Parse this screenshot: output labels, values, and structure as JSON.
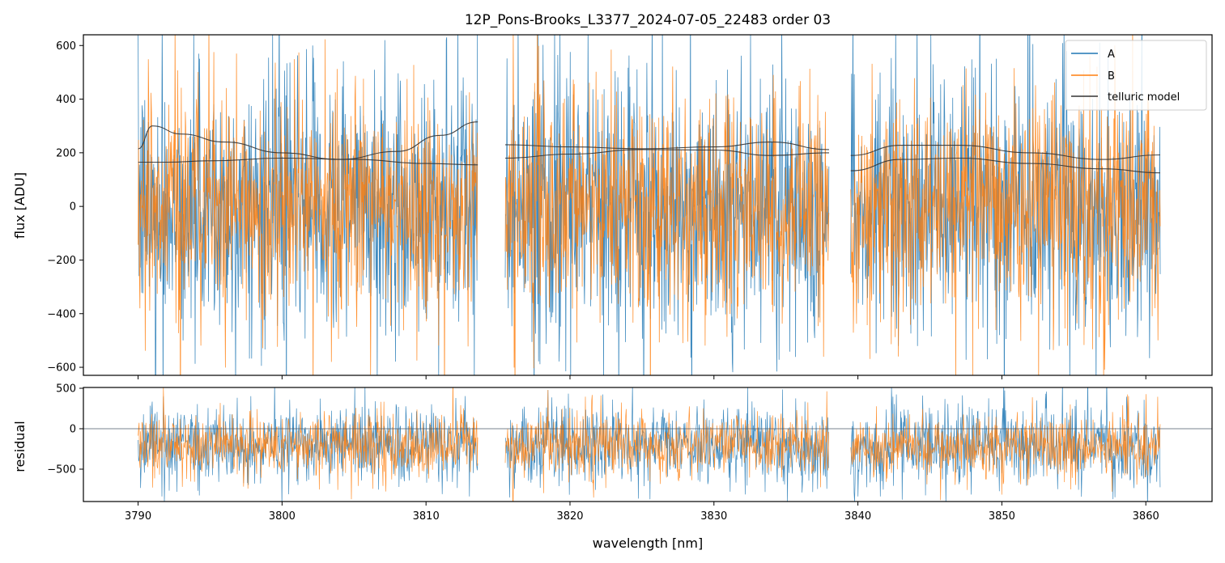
{
  "chart_data": [
    {
      "panel": "flux",
      "type": "line",
      "title": "12P_Pons-Brooks_L3377_2024-07-05_22483  order 03",
      "xlabel": "",
      "ylabel": "flux [ADU]",
      "xlim": [
        3786.2,
        3864.6
      ],
      "ylim": [
        -630,
        640
      ],
      "xticks": [
        3790,
        3800,
        3810,
        3820,
        3830,
        3840,
        3850,
        3860
      ],
      "yticks": [
        -600,
        -400,
        -200,
        0,
        200,
        400,
        600
      ],
      "ytick_labels": [
        "−600",
        "−400",
        "−200",
        "0",
        "200",
        "400",
        "600"
      ],
      "legend_position": "top-right",
      "segments": [
        [
          3790.0,
          3813.6
        ],
        [
          3815.5,
          3838.0
        ],
        [
          3839.5,
          3861.0
        ]
      ],
      "series": [
        {
          "name": "A",
          "color": "#1f77b4",
          "description_of_values": "noisy spectrum",
          "typical_range": [
            -600,
            600
          ],
          "typical_sigma": 230
        },
        {
          "name": "B",
          "color": "#ff7f0e",
          "typical_range": [
            -600,
            600
          ],
          "typical_sigma": 200
        },
        {
          "name": "telluric model",
          "color": "#333333",
          "curves": [
            {
              "segment": 0,
              "x": [
                3790,
                3792,
                3795,
                3800,
                3805,
                3810,
                3813.6
              ],
              "y": [
                165,
                165,
                170,
                180,
                175,
                160,
                155
              ]
            },
            {
              "segment": 0,
              "x": [
                3790,
                3791,
                3793,
                3796,
                3800,
                3804,
                3808,
                3811,
                3813.6
              ],
              "y": [
                215,
                300,
                270,
                240,
                200,
                175,
                205,
                265,
                315
              ]
            },
            {
              "segment": 1,
              "x": [
                3815.5,
                3820,
                3825,
                3830,
                3834,
                3838
              ],
              "y": [
                230,
                222,
                215,
                222,
                240,
                212
              ]
            },
            {
              "segment": 1,
              "x": [
                3815.5,
                3820,
                3825,
                3830,
                3834,
                3838
              ],
              "y": [
                180,
                195,
                212,
                210,
                190,
                200
              ]
            },
            {
              "segment": 2,
              "x": [
                3839.5,
                3843,
                3847,
                3852,
                3857,
                3861
              ],
              "y": [
                190,
                228,
                228,
                200,
                175,
                192
              ]
            },
            {
              "segment": 2,
              "x": [
                3839.5,
                3843,
                3847,
                3852,
                3857,
                3861
              ],
              "y": [
                133,
                175,
                180,
                160,
                140,
                125
              ]
            }
          ]
        }
      ]
    },
    {
      "panel": "residual",
      "type": "line",
      "xlabel": "wavelength [nm]",
      "ylabel": "residual",
      "xlim": [
        3786.2,
        3864.6
      ],
      "ylim": [
        -900,
        510
      ],
      "xticks": [
        3790,
        3800,
        3810,
        3820,
        3830,
        3840,
        3850,
        3860
      ],
      "yticks": [
        -500,
        0,
        500
      ],
      "ytick_labels": [
        "−500",
        "0",
        "500"
      ],
      "reference_line_y": 0,
      "series": [
        {
          "name": "A",
          "color": "#1f77b4",
          "center": -200,
          "typical_sigma": 230
        },
        {
          "name": "B",
          "color": "#ff7f0e",
          "center": -200,
          "typical_sigma": 190
        }
      ]
    }
  ]
}
